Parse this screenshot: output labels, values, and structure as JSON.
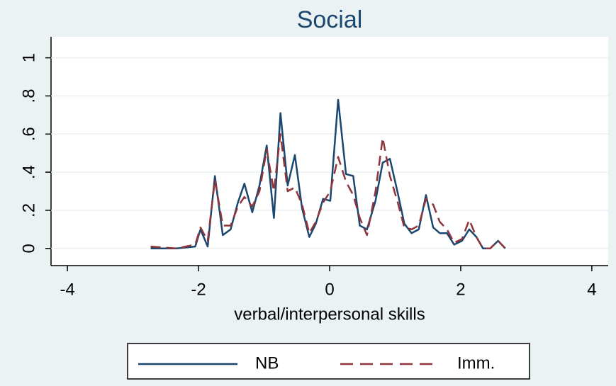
{
  "chart_data": {
    "type": "line",
    "title": "Social",
    "x_label": "verbal/interpersonal skills",
    "x": [
      -2.73,
      -2.34,
      -2.05,
      -1.97,
      -1.86,
      -1.75,
      -1.63,
      -1.51,
      -1.4,
      -1.3,
      -1.18,
      -1.07,
      -0.96,
      -0.85,
      -0.75,
      -0.64,
      -0.53,
      -0.42,
      -0.31,
      -0.21,
      -0.1,
      0.01,
      0.13,
      0.25,
      0.36,
      0.46,
      0.57,
      0.7,
      0.81,
      0.92,
      1.04,
      1.14,
      1.25,
      1.36,
      1.47,
      1.58,
      1.68,
      1.79,
      1.9,
      2.02,
      2.13,
      2.24,
      2.34,
      2.45,
      2.57,
      2.68
    ],
    "series": [
      {
        "name": "NB",
        "color": "#1a476f",
        "dashed": false,
        "values": [
          0,
          0,
          0.01,
          0.1,
          0.01,
          0.38,
          0.07,
          0.1,
          0.24,
          0.34,
          0.19,
          0.33,
          0.54,
          0.16,
          0.71,
          0.33,
          0.49,
          0.21,
          0.06,
          0.13,
          0.26,
          0.25,
          0.78,
          0.39,
          0.38,
          0.12,
          0.1,
          0.25,
          0.45,
          0.47,
          0.29,
          0.13,
          0.08,
          0.1,
          0.28,
          0.11,
          0.08,
          0.08,
          0.02,
          0.04,
          0.1,
          0.06,
          0,
          0,
          0.04,
          0
        ]
      },
      {
        "name": "Imm.",
        "color": "#90353b",
        "dashed": true,
        "values": [
          0.01,
          0,
          0.02,
          0.11,
          0.04,
          0.36,
          0.12,
          0.12,
          0.22,
          0.27,
          0.22,
          0.3,
          0.52,
          0.3,
          0.6,
          0.3,
          0.32,
          0.23,
          0.08,
          0.14,
          0.24,
          0.3,
          0.48,
          0.35,
          0.28,
          0.16,
          0.07,
          0.3,
          0.58,
          0.38,
          0.24,
          0.11,
          0.1,
          0.12,
          0.26,
          0.23,
          0.14,
          0.1,
          0.03,
          0.05,
          0.15,
          0.06,
          0,
          0,
          0.04,
          0
        ]
      }
    ],
    "xlim": [
      -4.25,
      4.25
    ],
    "xticks": [
      -4,
      -2,
      0,
      2,
      4
    ],
    "ylim": [
      -0.09,
      1.11
    ],
    "yticks": [
      0,
      {
        "value": 0.2,
        "label": ".2"
      },
      {
        "value": 0.4,
        "label": ".4"
      },
      {
        "value": 0.6,
        "label": ".6"
      },
      {
        "value": 0.8,
        "label": ".8"
      },
      1
    ],
    "grid": true
  }
}
